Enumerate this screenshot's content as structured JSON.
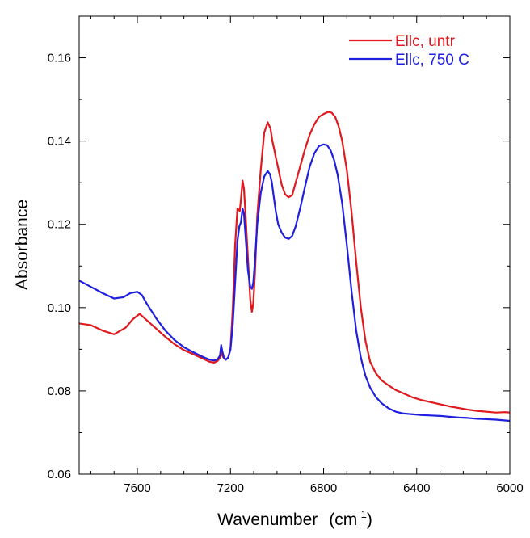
{
  "chart_data": {
    "type": "line",
    "xlabel": "Wavenumber",
    "xlabel_unit_base": "(cm",
    "xlabel_unit_sup": "-1",
    "xlabel_unit_close": ")",
    "ylabel": "Absorbance",
    "xlim": [
      7850,
      6000
    ],
    "ylim": [
      0.06,
      0.17
    ],
    "x_reversed": true,
    "x_ticks": [
      7600,
      7200,
      6800,
      6400,
      6000
    ],
    "x_tick_labels": [
      "7600",
      "7200",
      "6800",
      "6400",
      "6000"
    ],
    "x_minor_step": 100,
    "y_ticks": [
      0.06,
      0.08,
      0.1,
      0.12,
      0.14,
      0.16
    ],
    "y_tick_labels": [
      "0.06",
      "0.08",
      "0.10",
      "0.12",
      "0.14",
      "0.16"
    ],
    "y_minor_step": 0.01,
    "grid": false,
    "legend_position": "top-right",
    "series": [
      {
        "name": "Ellc, untr",
        "color": "#e0191e",
        "x": [
          7850,
          7800,
          7750,
          7700,
          7650,
          7620,
          7590,
          7560,
          7520,
          7480,
          7440,
          7400,
          7360,
          7320,
          7290,
          7270,
          7255,
          7245,
          7240,
          7235,
          7228,
          7220,
          7210,
          7200,
          7190,
          7180,
          7170,
          7165,
          7160,
          7155,
          7148,
          7142,
          7135,
          7125,
          7115,
          7108,
          7102,
          7095,
          7085,
          7070,
          7055,
          7040,
          7028,
          7020,
          7012,
          7005,
          6995,
          6980,
          6965,
          6950,
          6935,
          6920,
          6900,
          6880,
          6860,
          6840,
          6820,
          6800,
          6780,
          6765,
          6750,
          6735,
          6720,
          6700,
          6680,
          6660,
          6640,
          6620,
          6600,
          6575,
          6550,
          6520,
          6490,
          6460,
          6420,
          6380,
          6340,
          6300,
          6260,
          6220,
          6180,
          6140,
          6100,
          6060,
          6020,
          6000
        ],
        "y": [
          0.0962,
          0.0958,
          0.0945,
          0.0936,
          0.0952,
          0.0972,
          0.0985,
          0.097,
          0.095,
          0.093,
          0.0912,
          0.0898,
          0.0888,
          0.0878,
          0.087,
          0.0868,
          0.0872,
          0.088,
          0.0893,
          0.0885,
          0.0878,
          0.0875,
          0.088,
          0.09,
          0.1,
          0.115,
          0.1238,
          0.1235,
          0.1232,
          0.126,
          0.1305,
          0.1285,
          0.122,
          0.112,
          0.102,
          0.099,
          0.101,
          0.108,
          0.122,
          0.133,
          0.142,
          0.1445,
          0.143,
          0.14,
          0.138,
          0.136,
          0.1335,
          0.1295,
          0.1272,
          0.1265,
          0.127,
          0.13,
          0.134,
          0.138,
          0.1415,
          0.144,
          0.1458,
          0.1465,
          0.147,
          0.1468,
          0.1458,
          0.1435,
          0.14,
          0.133,
          0.123,
          0.111,
          0.1,
          0.092,
          0.087,
          0.0842,
          0.0825,
          0.0813,
          0.0802,
          0.0795,
          0.0785,
          0.0778,
          0.0773,
          0.0768,
          0.0763,
          0.0759,
          0.0755,
          0.0752,
          0.075,
          0.0748,
          0.0749,
          0.0748
        ]
      },
      {
        "name": "Ellc, 750 C",
        "color": "#1f1fe0",
        "x": [
          7850,
          7800,
          7750,
          7700,
          7660,
          7630,
          7600,
          7580,
          7560,
          7520,
          7480,
          7440,
          7400,
          7360,
          7320,
          7290,
          7270,
          7255,
          7245,
          7240,
          7235,
          7228,
          7220,
          7210,
          7200,
          7190,
          7180,
          7170,
          7162,
          7155,
          7148,
          7142,
          7135,
          7125,
          7115,
          7108,
          7102,
          7095,
          7085,
          7070,
          7055,
          7040,
          7030,
          7022,
          7015,
          7005,
          6995,
          6980,
          6965,
          6950,
          6935,
          6920,
          6900,
          6880,
          6860,
          6840,
          6820,
          6800,
          6785,
          6770,
          6755,
          6740,
          6720,
          6700,
          6680,
          6660,
          6640,
          6620,
          6600,
          6575,
          6550,
          6520,
          6490,
          6460,
          6420,
          6380,
          6340,
          6300,
          6260,
          6220,
          6180,
          6140,
          6100,
          6060,
          6020,
          6000
        ],
        "y": [
          0.1065,
          0.105,
          0.1035,
          0.1022,
          0.1025,
          0.1035,
          0.1038,
          0.103,
          0.101,
          0.0975,
          0.0945,
          0.0922,
          0.0905,
          0.0893,
          0.0882,
          0.0875,
          0.0873,
          0.0876,
          0.0885,
          0.091,
          0.0895,
          0.088,
          0.0875,
          0.088,
          0.09,
          0.096,
          0.106,
          0.116,
          0.1195,
          0.1205,
          0.1238,
          0.1225,
          0.117,
          0.109,
          0.105,
          0.1045,
          0.106,
          0.111,
          0.12,
          0.1275,
          0.1315,
          0.1328,
          0.132,
          0.13,
          0.127,
          0.123,
          0.12,
          0.118,
          0.1168,
          0.1165,
          0.1172,
          0.1195,
          0.124,
          0.129,
          0.1338,
          0.137,
          0.1388,
          0.1392,
          0.139,
          0.1378,
          0.1355,
          0.132,
          0.125,
          0.115,
          0.104,
          0.0945,
          0.088,
          0.0836,
          0.0808,
          0.0785,
          0.077,
          0.0758,
          0.075,
          0.0746,
          0.0744,
          0.0742,
          0.0741,
          0.074,
          0.0738,
          0.0736,
          0.0735,
          0.0733,
          0.0732,
          0.0731,
          0.0729,
          0.0728
        ]
      }
    ]
  }
}
